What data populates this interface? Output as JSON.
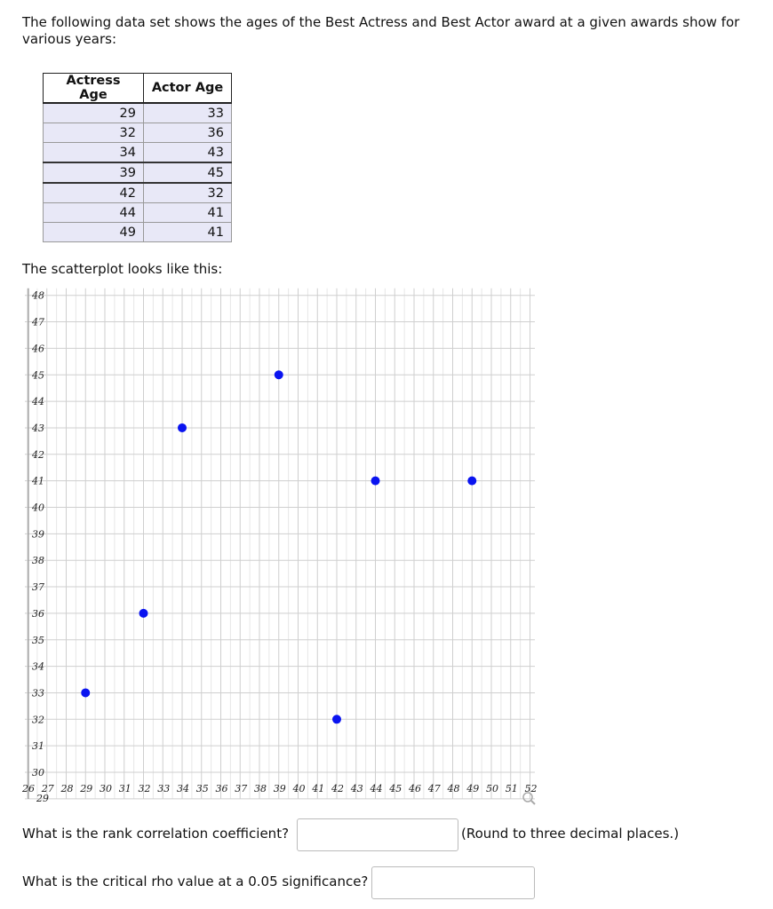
{
  "intro_text": "The following data set shows the ages of the Best Actress and Best Actor award at a given awards show for various years:",
  "table": {
    "headers": [
      "Actress Age",
      "Actor Age"
    ],
    "rows": [
      [
        "29",
        "33"
      ],
      [
        "32",
        "36"
      ],
      [
        "34",
        "43"
      ],
      [
        "39",
        "45"
      ],
      [
        "42",
        "32"
      ],
      [
        "44",
        "41"
      ],
      [
        "49",
        "41"
      ]
    ]
  },
  "plot_caption": "The scatterplot looks like this:",
  "chart_data": {
    "type": "scatter",
    "title": "",
    "xlabel": "",
    "ylabel": "",
    "x_ticks": [
      "26",
      "27",
      "28",
      "29",
      "30",
      "31",
      "32",
      "33",
      "34",
      "35",
      "36",
      "37",
      "38",
      "39",
      "40",
      "41",
      "42",
      "43",
      "44",
      "45",
      "46",
      "47",
      "48",
      "49",
      "50",
      "51",
      "52"
    ],
    "x_origin_label": "29",
    "y_ticks": [
      "30",
      "31",
      "32",
      "33",
      "34",
      "35",
      "36",
      "37",
      "38",
      "39",
      "40",
      "41",
      "42",
      "43",
      "44",
      "45",
      "46",
      "47",
      "48"
    ],
    "xlim": [
      26,
      52
    ],
    "ylim": [
      30,
      48
    ],
    "grid": true,
    "point_color": "#0a14f0",
    "points": [
      {
        "x": 29,
        "y": 33
      },
      {
        "x": 32,
        "y": 36
      },
      {
        "x": 34,
        "y": 43
      },
      {
        "x": 39,
        "y": 45
      },
      {
        "x": 42,
        "y": 32
      },
      {
        "x": 44,
        "y": 41
      },
      {
        "x": 49,
        "y": 41
      }
    ]
  },
  "questions": {
    "q1_label": "What is the rank correlation coefficient?",
    "q1_note": "(Round to three decimal places.)",
    "q2_label": "What is the critical rho value at a 0.05 significance?"
  }
}
